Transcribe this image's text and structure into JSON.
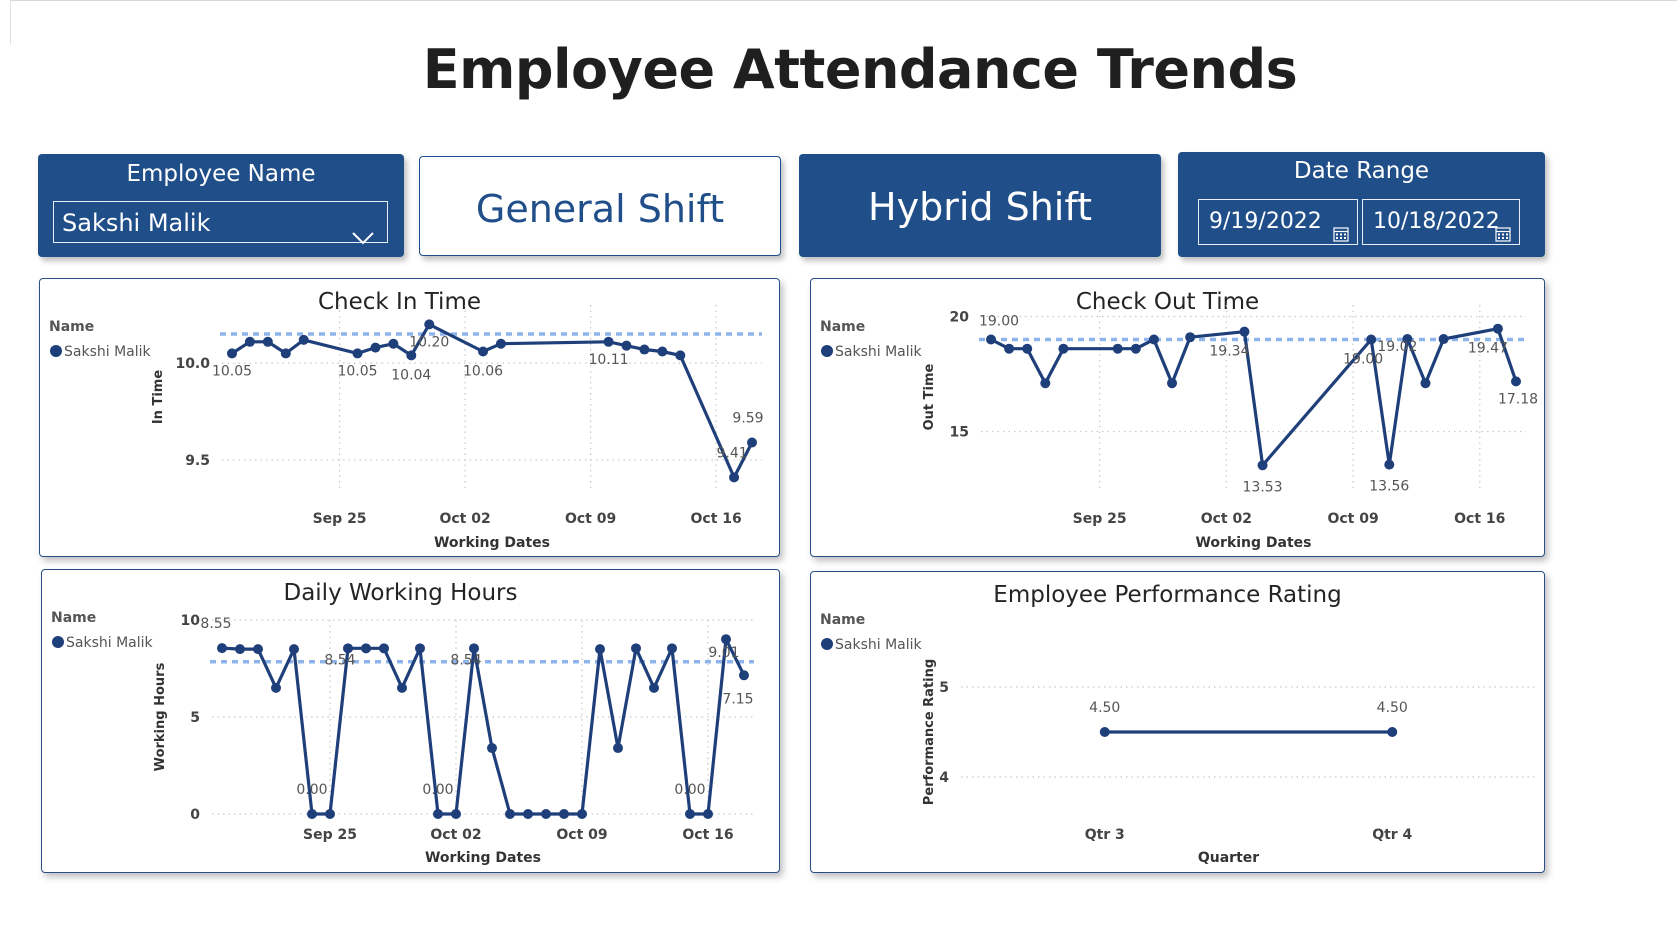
{
  "page": {
    "title": "Employee Attendance Trends"
  },
  "colors": {
    "brand": "#1f4e89",
    "line": "#1f3f7a",
    "avg": "#8fb4ec",
    "grid": "#c8c8c8"
  },
  "slicers": {
    "employee": {
      "label": "Employee Name",
      "value": "Sakshi Malik",
      "icon": "chevron-down-icon"
    },
    "general_shift": {
      "label": "General Shift"
    },
    "hybrid_shift": {
      "label": "Hybrid Shift"
    },
    "date_range": {
      "label": "Date Range",
      "start": "9/19/2022",
      "end": "10/18/2022",
      "icon": "calendar-icon"
    }
  },
  "chart_data": [
    {
      "id": "checkin",
      "type": "line",
      "title": "Check In Time",
      "xlabel": "Working Dates",
      "ylabel": "In Time",
      "legend_title": "Name",
      "legend": [
        "Sakshi Malik"
      ],
      "legend_placement": "left",
      "x_ticks": [
        "Sep 25",
        "Oct 02",
        "Oct 09",
        "Oct 16"
      ],
      "y_ticks": [
        "10.0",
        "9.5"
      ],
      "xlim": [
        "2022-09-19",
        "2022-10-18"
      ],
      "ylim": [
        9.35,
        10.3
      ],
      "average": 10.15,
      "series": [
        {
          "name": "Sakshi Malik",
          "x": [
            "2022-09-19",
            "2022-09-20",
            "2022-09-21",
            "2022-09-22",
            "2022-09-23",
            "2022-09-26",
            "2022-09-27",
            "2022-09-28",
            "2022-09-29",
            "2022-09-30",
            "2022-10-03",
            "2022-10-04",
            "2022-10-10",
            "2022-10-11",
            "2022-10-12",
            "2022-10-13",
            "2022-10-14",
            "2022-10-17",
            "2022-10-18"
          ],
          "y": [
            10.05,
            10.11,
            10.11,
            10.05,
            10.12,
            10.05,
            10.08,
            10.1,
            10.04,
            10.2,
            10.06,
            10.1,
            10.11,
            10.09,
            10.07,
            10.06,
            10.04,
            9.41,
            9.59
          ]
        }
      ],
      "data_labels": [
        {
          "x": "2022-09-19",
          "y": 10.05,
          "text": "10.05"
        },
        {
          "x": "2022-09-26",
          "y": 10.05,
          "text": "10.05"
        },
        {
          "x": "2022-09-29",
          "y": 10.04,
          "text": "10.04"
        },
        {
          "x": "2022-09-30",
          "y": 10.2,
          "text": "10.20"
        },
        {
          "x": "2022-10-03",
          "y": 10.06,
          "text": "10.06"
        },
        {
          "x": "2022-10-10",
          "y": 10.11,
          "text": "10.11"
        },
        {
          "x": "2022-10-17",
          "y": 9.41,
          "text": "9.41"
        },
        {
          "x": "2022-10-18",
          "y": 9.59,
          "text": "9.59"
        }
      ]
    },
    {
      "id": "checkout",
      "type": "line",
      "title": "Check Out Time",
      "xlabel": "Working Dates",
      "ylabel": "Out Time",
      "legend_title": "Name",
      "legend": [
        "Sakshi Malik"
      ],
      "legend_placement": "left",
      "x_ticks": [
        "Sep 25",
        "Oct 02",
        "Oct 09",
        "Oct 16"
      ],
      "y_ticks": [
        "20",
        "15"
      ],
      "xlim": [
        "2022-09-19",
        "2022-10-18"
      ],
      "ylim": [
        12.5,
        20.5
      ],
      "average": 19.0,
      "series": [
        {
          "name": "Sakshi Malik",
          "x": [
            "2022-09-19",
            "2022-09-20",
            "2022-09-21",
            "2022-09-22",
            "2022-09-23",
            "2022-09-26",
            "2022-09-27",
            "2022-09-28",
            "2022-09-29",
            "2022-09-30",
            "2022-10-03",
            "2022-10-04",
            "2022-10-10",
            "2022-10-11",
            "2022-10-12",
            "2022-10-13",
            "2022-10-14",
            "2022-10-17",
            "2022-10-18"
          ],
          "y": [
            19.0,
            18.6,
            18.6,
            17.1,
            18.6,
            18.6,
            18.6,
            19.0,
            17.1,
            19.1,
            19.34,
            13.53,
            19.0,
            13.56,
            19.02,
            17.1,
            19.02,
            19.47,
            17.18
          ]
        }
      ],
      "data_labels": [
        {
          "x": "2022-09-19",
          "y": 19.0,
          "text": "19.00"
        },
        {
          "x": "2022-10-03",
          "y": 19.34,
          "text": "19.34"
        },
        {
          "x": "2022-10-04",
          "y": 13.53,
          "text": "13.53"
        },
        {
          "x": "2022-10-10",
          "y": 19.0,
          "text": "19.00"
        },
        {
          "x": "2022-10-11",
          "y": 13.56,
          "text": "13.56"
        },
        {
          "x": "2022-10-12",
          "y": 19.02,
          "text": "19.02"
        },
        {
          "x": "2022-10-17",
          "y": 19.47,
          "text": "19.47"
        },
        {
          "x": "2022-10-18",
          "y": 17.18,
          "text": "17.18"
        }
      ]
    },
    {
      "id": "hours",
      "type": "line",
      "title": "Daily Working Hours",
      "xlabel": "Working Dates",
      "ylabel": "Working Hours",
      "legend_title": "Name",
      "legend": [
        "Sakshi Malik"
      ],
      "legend_placement": "left",
      "x_ticks": [
        "Sep 25",
        "Oct 02",
        "Oct 09",
        "Oct 16"
      ],
      "y_ticks": [
        "10",
        "5",
        "0"
      ],
      "xlim": [
        "2022-09-19",
        "2022-10-18"
      ],
      "ylim": [
        0,
        10
      ],
      "average": 7.85,
      "series": [
        {
          "name": "Sakshi Malik",
          "x": [
            "2022-09-19",
            "2022-09-20",
            "2022-09-21",
            "2022-09-22",
            "2022-09-23",
            "2022-09-24",
            "2022-09-25",
            "2022-09-26",
            "2022-09-27",
            "2022-09-28",
            "2022-09-29",
            "2022-09-30",
            "2022-10-01",
            "2022-10-02",
            "2022-10-03",
            "2022-10-04",
            "2022-10-05",
            "2022-10-06",
            "2022-10-07",
            "2022-10-08",
            "2022-10-09",
            "2022-10-10",
            "2022-10-11",
            "2022-10-12",
            "2022-10-13",
            "2022-10-14",
            "2022-10-15",
            "2022-10-16",
            "2022-10-17",
            "2022-10-18"
          ],
          "y": [
            8.55,
            8.5,
            8.5,
            6.5,
            8.5,
            0.0,
            0.0,
            8.54,
            8.54,
            8.54,
            6.5,
            8.54,
            0.0,
            0.0,
            8.54,
            3.4,
            0.0,
            0.0,
            0.0,
            0.0,
            0.0,
            8.5,
            3.4,
            8.54,
            6.5,
            8.54,
            0.0,
            0.0,
            9.01,
            7.15
          ]
        }
      ],
      "data_labels": [
        {
          "x": "2022-09-19",
          "y": 8.55,
          "text": "8.55"
        },
        {
          "x": "2022-09-24",
          "y": 0.0,
          "text": "0.00"
        },
        {
          "x": "2022-09-26",
          "y": 8.54,
          "text": "8.54"
        },
        {
          "x": "2022-10-01",
          "y": 0.0,
          "text": "0.00"
        },
        {
          "x": "2022-10-03",
          "y": 8.54,
          "text": "8.54"
        },
        {
          "x": "2022-10-15",
          "y": 0.0,
          "text": "0.00"
        },
        {
          "x": "2022-10-17",
          "y": 9.01,
          "text": "9.01"
        },
        {
          "x": "2022-10-18",
          "y": 7.15,
          "text": "7.15"
        }
      ]
    },
    {
      "id": "rating",
      "type": "line",
      "title": "Employee Performance Rating",
      "xlabel": "Quarter",
      "ylabel": "Performance Rating",
      "legend_title": "Name",
      "legend": [
        "Sakshi Malik"
      ],
      "legend_placement": "left",
      "categories": [
        "Qtr 3",
        "Qtr 4"
      ],
      "y_ticks": [
        "5",
        "4"
      ],
      "ylim": [
        3.5,
        5.5
      ],
      "series": [
        {
          "name": "Sakshi Malik",
          "values": [
            4.5,
            4.5
          ]
        }
      ],
      "data_labels": [
        "4.50",
        "4.50"
      ]
    }
  ]
}
